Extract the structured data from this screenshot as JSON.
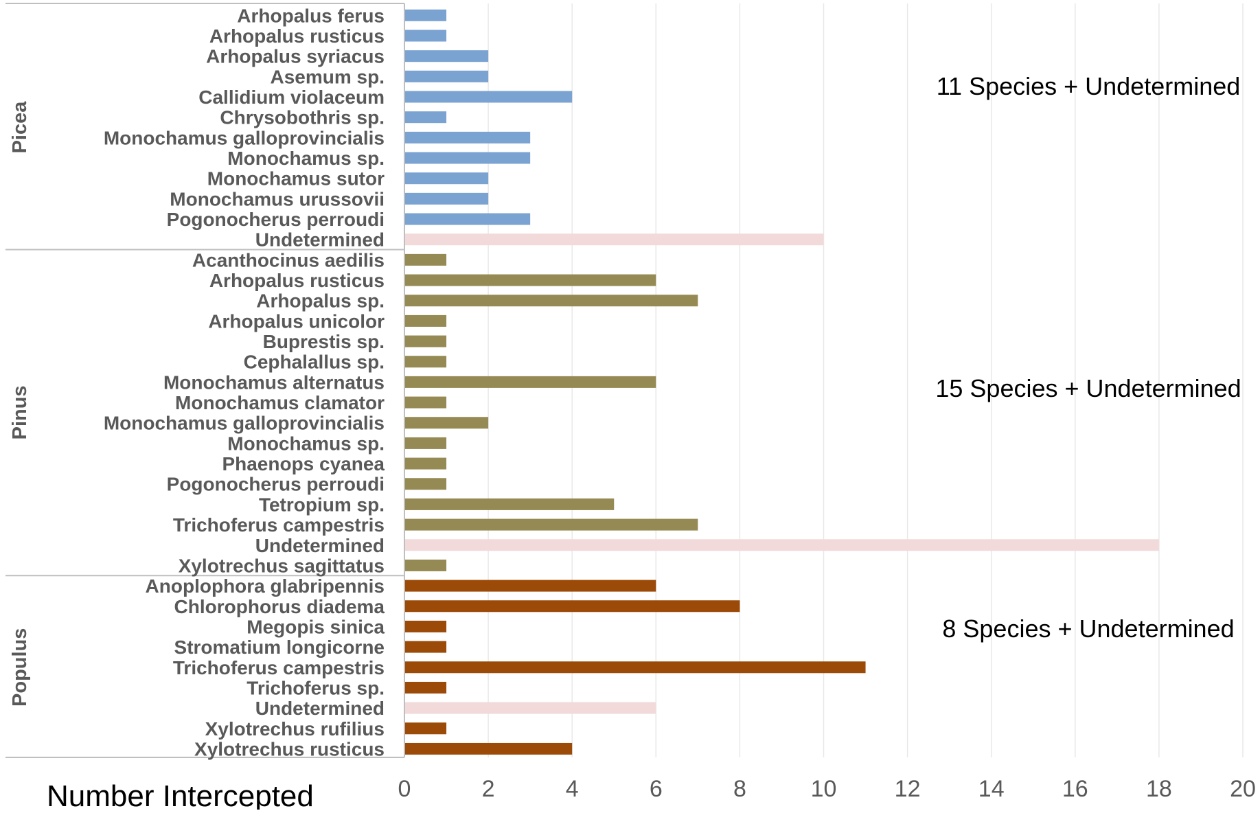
{
  "chart_data": {
    "type": "bar",
    "orientation": "horizontal",
    "xlabel": "Number Intercepted",
    "xlim": [
      0,
      20
    ],
    "xticks": [
      0,
      2,
      4,
      6,
      8,
      10,
      12,
      14,
      16,
      18,
      20
    ],
    "grid": "vertical",
    "colors": {
      "Picea": "#7BA3D2",
      "Pinus": "#958A53",
      "Populus": "#9B4A08",
      "Undetermined": "#F2DADA",
      "axis": "#BFBFBF",
      "grid": "#E8E8E8"
    },
    "groups": [
      {
        "name": "Picea",
        "annotation": "11 Species + Undetermined",
        "categories": [
          "Arhopalus ferus",
          "Arhopalus rusticus",
          "Arhopalus syriacus",
          "Asemum sp.",
          "Callidium violaceum",
          "Chrysobothris sp.",
          "Monochamus galloprovincialis",
          "Monochamus sp.",
          "Monochamus sutor",
          "Monochamus urussovii",
          "Pogonocherus perroudi",
          "Undetermined"
        ],
        "values": [
          1,
          1,
          2,
          2,
          4,
          1,
          3,
          3,
          2,
          2,
          3,
          10
        ]
      },
      {
        "name": "Pinus",
        "annotation": "15 Species + Undetermined",
        "categories": [
          "Acanthocinus aedilis",
          "Arhopalus rusticus",
          "Arhopalus sp.",
          "Arhopalus unicolor",
          "Buprestis sp.",
          "Cephalallus sp.",
          "Monochamus alternatus",
          "Monochamus clamator",
          "Monochamus galloprovincialis",
          "Monochamus sp.",
          "Phaenops cyanea",
          "Pogonocherus perroudi",
          "Tetropium sp.",
          "Trichoferus campestris",
          "Undetermined",
          "Xylotrechus sagittatus"
        ],
        "values": [
          1,
          6,
          7,
          1,
          1,
          1,
          6,
          1,
          2,
          1,
          1,
          1,
          5,
          7,
          18,
          1
        ]
      },
      {
        "name": "Populus",
        "annotation": "8 Species + Undetermined",
        "categories": [
          "Anoplophora glabripennis",
          "Chlorophorus diadema",
          "Megopis sinica",
          "Stromatium longicorne",
          "Trichoferus campestris",
          "Trichoferus sp.",
          "Undetermined",
          "Xylotrechus rufilius",
          "Xylotrechus rusticus"
        ],
        "values": [
          6,
          8,
          1,
          1,
          11,
          1,
          6,
          1,
          4
        ]
      }
    ]
  }
}
